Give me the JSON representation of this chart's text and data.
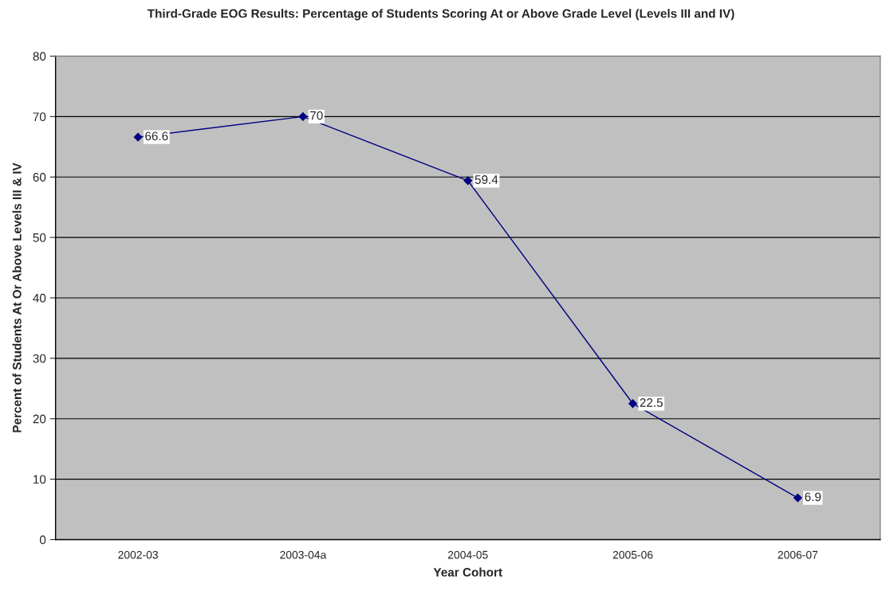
{
  "chart_data": {
    "type": "line",
    "title": "Third-Grade EOG Results: Percentage of Students Scoring At or Above Grade Level (Levels III and IV)",
    "xlabel": "Year Cohort",
    "ylabel": "Percent of Students At Or Above Levels III & IV",
    "categories": [
      "2002-03",
      "2003-04a",
      "2004-05",
      "2005-06",
      "2006-07"
    ],
    "series": [
      {
        "color": "#000080",
        "values": [
          66.6,
          70,
          59.4,
          22.5,
          6.9
        ]
      }
    ],
    "ylim": [
      0,
      80
    ],
    "yticks": [
      0,
      10,
      20,
      30,
      40,
      50,
      60,
      70,
      80
    ],
    "grid": "y",
    "marker": "diamond",
    "line_style": "solid",
    "data_labels": true
  }
}
